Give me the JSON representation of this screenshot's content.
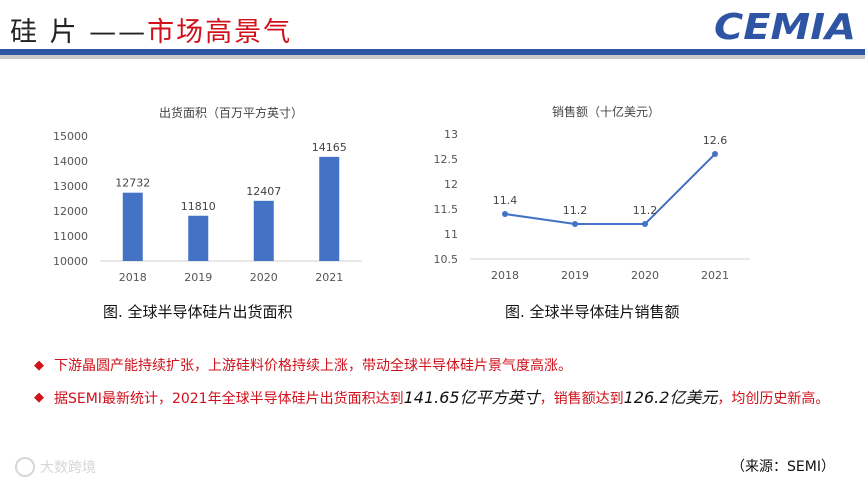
{
  "header": {
    "title_black": "硅 片 ——",
    "title_red": "市场高景气",
    "logo_text": "CEMIA"
  },
  "chart_data": [
    {
      "type": "bar",
      "title": "出货面积（百万平方英寸）",
      "categories": [
        "2018",
        "2019",
        "2020",
        "2021"
      ],
      "values": [
        12732,
        11810,
        12407,
        14165
      ],
      "ylim": [
        10000,
        15000
      ],
      "yticks": [
        10000,
        11000,
        12000,
        13000,
        14000,
        15000
      ],
      "color": "#4472c4",
      "grid": false,
      "caption": "图. 全球半导体硅片出货面积"
    },
    {
      "type": "line",
      "title": "销售额（十亿美元）",
      "categories": [
        "2018",
        "2019",
        "2020",
        "2021"
      ],
      "values": [
        11.4,
        11.2,
        11.2,
        12.6
      ],
      "ylim": [
        10.5,
        13
      ],
      "yticks": [
        10.5,
        11,
        11.5,
        12,
        12.5,
        13
      ],
      "color": "#4472c4",
      "grid": false,
      "caption": "图. 全球半导体硅片销售额"
    }
  ],
  "bullets": [
    {
      "parts": [
        {
          "text": "下游晶圆产能持续扩张，上游硅料价格持续上涨，带动全球半导体硅片景气度高涨。",
          "style": "normal"
        }
      ]
    },
    {
      "parts": [
        {
          "text": "据SEMI最新统计，2021年全球半导体硅片出货面积达到",
          "style": "normal"
        },
        {
          "text": "141.65亿平方英寸",
          "style": "em"
        },
        {
          "text": "，销售额达到",
          "style": "normal"
        },
        {
          "text": "126.2亿美元",
          "style": "em"
        },
        {
          "text": "，均创历史新高。",
          "style": "normal"
        }
      ]
    }
  ],
  "source": "（来源：SEMI）",
  "watermark": "大数跨境",
  "colors": {
    "accent_red": "#d0101a",
    "brand_blue": "#2e55a3",
    "series_blue": "#4472c4"
  }
}
